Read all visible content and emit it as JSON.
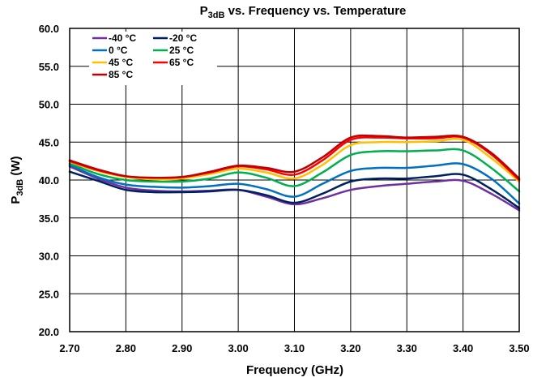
{
  "chart_data": {
    "type": "line",
    "title_main": "P",
    "title_sub": "3dB",
    "title_rest": " vs. Frequency vs. Temperature",
    "xlabel": "Frequency (GHz)",
    "ylabel_main": "P",
    "ylabel_sub": "3dB",
    "ylabel_rest": " (W)",
    "xlim": [
      2.7,
      3.5
    ],
    "ylim": [
      20.0,
      60.0
    ],
    "xticks": [
      "2.70",
      "2.80",
      "2.90",
      "3.00",
      "3.10",
      "3.20",
      "3.30",
      "3.40",
      "3.50"
    ],
    "yticks": [
      "20.0",
      "25.0",
      "30.0",
      "35.0",
      "40.0",
      "45.0",
      "50.0",
      "55.0",
      "60.0"
    ],
    "grid": true,
    "legend_position": "top-left",
    "x": [
      2.7,
      2.75,
      2.8,
      2.85,
      2.9,
      2.95,
      3.0,
      3.05,
      3.1,
      3.15,
      3.2,
      3.25,
      3.3,
      3.35,
      3.4,
      3.45,
      3.5
    ],
    "series": [
      {
        "name": "-40 °C",
        "color": "#7030A0",
        "values": [
          41.8,
          40.2,
          39.0,
          38.6,
          38.5,
          38.6,
          38.7,
          37.8,
          36.8,
          37.6,
          38.7,
          39.2,
          39.5,
          39.8,
          39.9,
          38.2,
          36.0
        ]
      },
      {
        "name": "-20 °C",
        "color": "#002060",
        "values": [
          41.1,
          39.9,
          38.7,
          38.4,
          38.4,
          38.5,
          38.7,
          38.0,
          37.0,
          38.2,
          39.8,
          40.2,
          40.2,
          40.5,
          40.7,
          38.8,
          36.3
        ]
      },
      {
        "name": "0 °C",
        "color": "#0070C0",
        "values": [
          42.0,
          40.4,
          39.4,
          39.1,
          39.0,
          39.2,
          39.5,
          38.8,
          37.8,
          39.5,
          41.2,
          41.6,
          41.6,
          41.9,
          42.1,
          40.2,
          36.9
        ]
      },
      {
        "name": "25 °C",
        "color": "#00B050",
        "values": [
          42.2,
          40.8,
          40.0,
          39.8,
          39.8,
          40.2,
          41.0,
          40.3,
          39.2,
          41.0,
          43.3,
          43.8,
          43.8,
          43.9,
          43.9,
          41.6,
          38.5
        ]
      },
      {
        "name": "45 °C",
        "color": "#FFC000",
        "values": [
          42.4,
          41.2,
          40.4,
          40.1,
          40.2,
          40.8,
          41.5,
          41.0,
          40.2,
          42.0,
          44.6,
          45.0,
          45.0,
          45.1,
          45.3,
          42.9,
          39.8
        ]
      },
      {
        "name": "65 °C",
        "color": "#FF0000",
        "values": [
          42.5,
          41.3,
          40.5,
          40.3,
          40.4,
          41.0,
          41.8,
          41.4,
          40.7,
          42.6,
          45.3,
          45.6,
          45.5,
          45.5,
          45.6,
          43.4,
          40.0
        ]
      },
      {
        "name": "85 °C",
        "color": "#C00000",
        "values": [
          42.6,
          41.4,
          40.5,
          40.3,
          40.4,
          41.1,
          41.9,
          41.6,
          41.1,
          43.0,
          45.6,
          45.8,
          45.6,
          45.7,
          45.7,
          43.6,
          40.2
        ]
      }
    ]
  }
}
